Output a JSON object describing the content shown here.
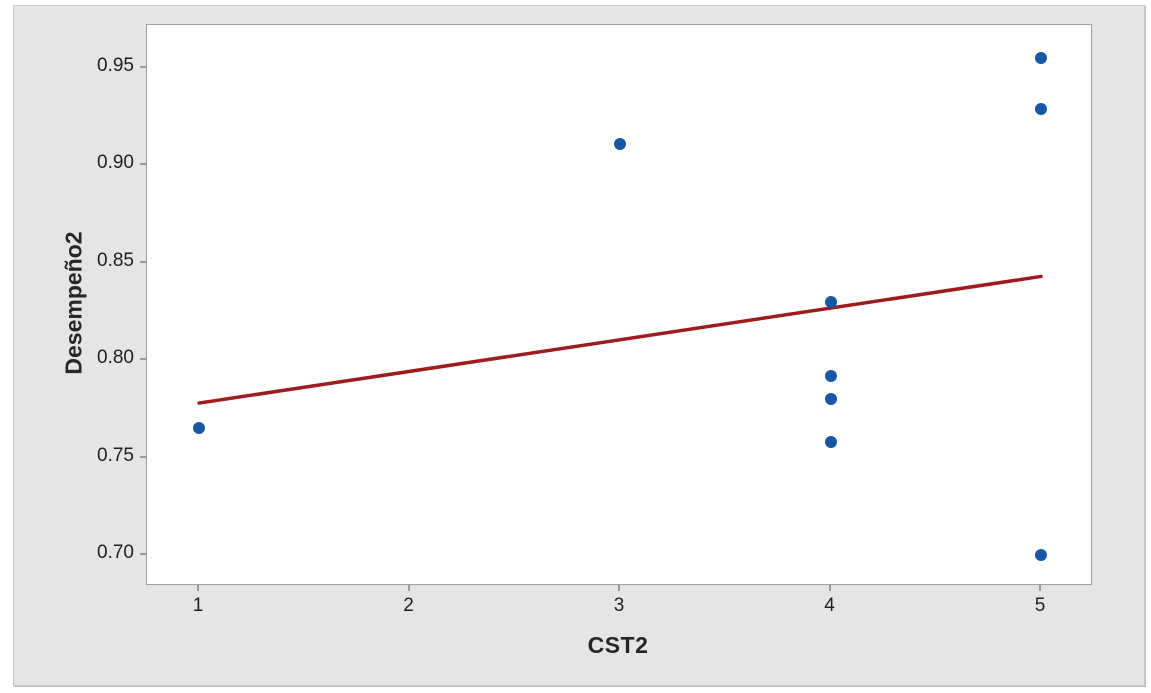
{
  "chart_data": {
    "type": "scatter",
    "title": "",
    "xlabel": "CST2",
    "ylabel": "Desempeño2",
    "xlim": [
      0.7525,
      5.2375
    ],
    "ylim": [
      0.6851,
      0.9721
    ],
    "x_tick_values": [
      1,
      2,
      3,
      4,
      5
    ],
    "x_tick_labels": [
      "1",
      "2",
      "3",
      "4",
      "5"
    ],
    "y_tick_values": [
      0.7,
      0.75,
      0.8,
      0.85,
      0.9,
      0.95
    ],
    "y_tick_labels": [
      "0.70",
      "0.75",
      "0.80",
      "0.85",
      "0.90",
      "0.95"
    ],
    "grid": "off",
    "legend": "none",
    "points": [
      {
        "x": 1,
        "y": 0.765
      },
      {
        "x": 3,
        "y": 0.911
      },
      {
        "x": 4,
        "y": 0.83
      },
      {
        "x": 4,
        "y": 0.792
      },
      {
        "x": 4,
        "y": 0.78
      },
      {
        "x": 4,
        "y": 0.758
      },
      {
        "x": 5,
        "y": 0.955
      },
      {
        "x": 5,
        "y": 0.929
      },
      {
        "x": 5,
        "y": 0.7
      }
    ],
    "fit_line": {
      "x1": 1,
      "y1": 0.778,
      "x2": 5,
      "y2": 0.843
    },
    "colors": {
      "point": "#1757a6",
      "fit_line": "#9e1b1f",
      "plot_bg": "#ffffff",
      "plot_border": "#9e9e9e",
      "panel_bg": "#e5e5e5",
      "panel_border": "#c8c8c8",
      "tick_mark": "#9a9a9a",
      "tick_label": "#1f1f1f",
      "axis_title": "#262626"
    }
  }
}
